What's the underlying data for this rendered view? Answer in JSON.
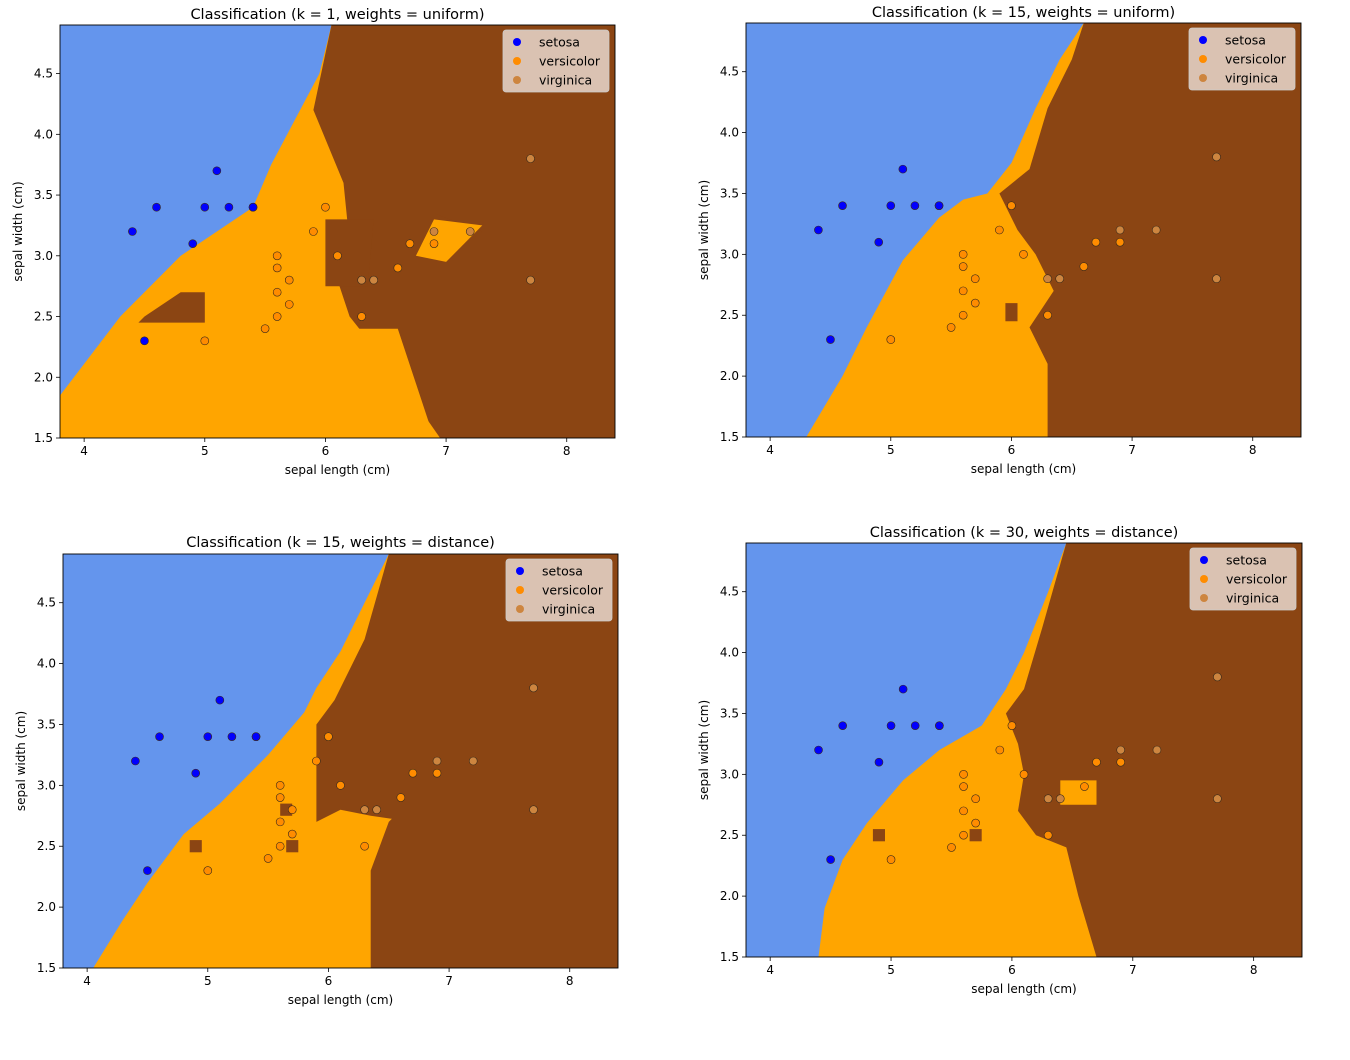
{
  "colors": {
    "setosa_region": "#6495ED",
    "versicolor_region": "#FFA500",
    "virginica_region": "#8B4513",
    "setosa_point": "#0000FF",
    "versicolor_point": "#FF8C00",
    "virginica_point": "#CD853F",
    "legend_bg": "#E8D8CF"
  },
  "chart_data": [
    {
      "type": "scatter",
      "title": "Classification (k = 1, weights = uniform)",
      "xlabel": "sepal length (cm)",
      "ylabel": "sepal width (cm)",
      "xlim": [
        3.8,
        8.4
      ],
      "ylim": [
        1.5,
        4.9
      ],
      "xticks": [
        "4",
        "5",
        "6",
        "7",
        "8"
      ],
      "yticks": [
        "1.5",
        "2.0",
        "2.5",
        "3.0",
        "3.5",
        "4.0",
        "4.5"
      ],
      "legend": [
        "setosa",
        "versicolor",
        "virginica"
      ],
      "legend_position": "upper right",
      "regions": {
        "setosa": [
          [
            3.8,
            4.9
          ],
          [
            6.05,
            4.9
          ],
          [
            5.95,
            4.5
          ],
          [
            5.55,
            3.75
          ],
          [
            5.4,
            3.4
          ],
          [
            4.8,
            3.0
          ],
          [
            4.3,
            2.5
          ],
          [
            3.8,
            1.85
          ]
        ],
        "virginica": [
          [
            6.05,
            4.9
          ],
          [
            8.4,
            4.9
          ],
          [
            8.4,
            1.5
          ],
          [
            6.95,
            1.5
          ],
          [
            6.6,
            2.0
          ],
          [
            6.2,
            2.5
          ],
          [
            6.1,
            2.8
          ],
          [
            6.2,
            3.1
          ],
          [
            6.15,
            3.6
          ],
          [
            5.9,
            4.2
          ]
        ],
        "virginica_islands": [
          [
            [
              4.5,
              2.5
            ],
            [
              4.8,
              2.7
            ],
            [
              5.0,
              2.7
            ],
            [
              5.0,
              2.45
            ],
            [
              4.45,
              2.45
            ]
          ],
          [
            [
              6.0,
              3.3
            ],
            [
              6.4,
              3.3
            ],
            [
              6.35,
              2.75
            ],
            [
              6.0,
              2.75
            ]
          ],
          [
            [
              6.9,
              3.35
            ],
            [
              7.3,
              3.2
            ],
            [
              6.95,
              2.95
            ],
            [
              6.9,
              3.0
            ]
          ]
        ],
        "versicolor_islands": [
          [
            [
              6.1,
              2.4
            ],
            [
              6.6,
              2.4
            ],
            [
              6.9,
              1.5
            ],
            [
              6.1,
              1.5
            ]
          ],
          [
            [
              6.9,
              3.3
            ],
            [
              7.3,
              3.25
            ],
            [
              7.0,
              2.95
            ],
            [
              6.75,
              3.0
            ]
          ]
        ]
      },
      "series": [
        {
          "name": "setosa",
          "x": [
            4.4,
            4.6,
            4.5,
            4.9,
            5.0,
            5.1,
            5.2,
            5.4,
            5.4
          ],
          "y": [
            3.2,
            3.4,
            2.3,
            3.1,
            3.4,
            3.7,
            3.4,
            3.4,
            3.4
          ]
        },
        {
          "name": "versicolor",
          "x": [
            5.0,
            5.5,
            5.6,
            5.6,
            5.6,
            5.6,
            5.7,
            5.7,
            5.9,
            6.0,
            6.1,
            6.3,
            6.6,
            6.7,
            6.9
          ],
          "y": [
            2.3,
            2.4,
            2.5,
            2.7,
            2.9,
            3.0,
            2.6,
            2.8,
            3.2,
            3.4,
            3.0,
            2.5,
            2.9,
            3.1,
            3.1
          ]
        },
        {
          "name": "virginica",
          "x": [
            6.3,
            6.4,
            6.9,
            7.2,
            7.7,
            7.7
          ],
          "y": [
            2.8,
            2.8,
            3.2,
            3.2,
            3.8,
            2.8
          ]
        }
      ]
    },
    {
      "type": "scatter",
      "title": "Classification (k = 15, weights = uniform)",
      "xlabel": "sepal length (cm)",
      "ylabel": "sepal width (cm)",
      "xlim": [
        3.8,
        8.4
      ],
      "ylim": [
        1.5,
        4.9
      ],
      "xticks": [
        "4",
        "5",
        "6",
        "7",
        "8"
      ],
      "yticks": [
        "1.5",
        "2.0",
        "2.5",
        "3.0",
        "3.5",
        "4.0",
        "4.5"
      ],
      "legend": [
        "setosa",
        "versicolor",
        "virginica"
      ],
      "legend_position": "upper right",
      "regions": {
        "setosa": [
          [
            3.8,
            4.9
          ],
          [
            6.6,
            4.9
          ],
          [
            6.4,
            4.6
          ],
          [
            6.2,
            4.2
          ],
          [
            6.0,
            3.75
          ],
          [
            5.8,
            3.5
          ],
          [
            5.6,
            3.45
          ],
          [
            5.4,
            3.3
          ],
          [
            5.1,
            2.95
          ],
          [
            4.8,
            2.4
          ],
          [
            4.6,
            2.0
          ],
          [
            4.3,
            1.5
          ],
          [
            3.8,
            1.5
          ]
        ],
        "virginica": [
          [
            6.6,
            4.9
          ],
          [
            8.4,
            4.9
          ],
          [
            8.4,
            1.5
          ],
          [
            6.3,
            1.5
          ],
          [
            6.3,
            2.1
          ],
          [
            6.15,
            2.4
          ],
          [
            6.35,
            2.7
          ],
          [
            6.2,
            3.0
          ],
          [
            6.05,
            3.2
          ],
          [
            5.9,
            3.5
          ],
          [
            6.15,
            3.7
          ],
          [
            6.3,
            4.2
          ],
          [
            6.5,
            4.6
          ]
        ],
        "virginica_islands": [
          [
            [
              5.95,
              2.6
            ],
            [
              6.05,
              2.6
            ],
            [
              6.05,
              2.45
            ],
            [
              5.95,
              2.45
            ]
          ]
        ],
        "versicolor_islands": []
      },
      "series": [
        {
          "name": "setosa",
          "x": [
            4.4,
            4.6,
            4.5,
            4.9,
            5.0,
            5.1,
            5.2,
            5.4,
            5.4
          ],
          "y": [
            3.2,
            3.4,
            2.3,
            3.1,
            3.4,
            3.7,
            3.4,
            3.4,
            3.4
          ]
        },
        {
          "name": "versicolor",
          "x": [
            5.0,
            5.5,
            5.6,
            5.6,
            5.6,
            5.6,
            5.7,
            5.7,
            5.9,
            6.0,
            6.1,
            6.3,
            6.6,
            6.7,
            6.9
          ],
          "y": [
            2.3,
            2.4,
            2.5,
            2.7,
            2.9,
            3.0,
            2.6,
            2.8,
            3.2,
            3.4,
            3.0,
            2.5,
            2.9,
            3.1,
            3.1
          ]
        },
        {
          "name": "virginica",
          "x": [
            6.3,
            6.4,
            6.9,
            7.2,
            7.7,
            7.7
          ],
          "y": [
            2.8,
            2.8,
            3.2,
            3.2,
            3.8,
            2.8
          ]
        }
      ]
    },
    {
      "type": "scatter",
      "title": "Classification (k = 15, weights = distance)",
      "xlabel": "sepal length (cm)",
      "ylabel": "sepal width (cm)",
      "xlim": [
        3.8,
        8.4
      ],
      "ylim": [
        1.5,
        4.9
      ],
      "xticks": [
        "4",
        "5",
        "6",
        "7",
        "8"
      ],
      "yticks": [
        "1.5",
        "2.0",
        "2.5",
        "3.0",
        "3.5",
        "4.0",
        "4.5"
      ],
      "legend": [
        "setosa",
        "versicolor",
        "virginica"
      ],
      "legend_position": "upper right",
      "regions": {
        "setosa": [
          [
            3.8,
            4.9
          ],
          [
            6.5,
            4.9
          ],
          [
            6.3,
            4.5
          ],
          [
            6.1,
            4.1
          ],
          [
            5.9,
            3.8
          ],
          [
            5.8,
            3.6
          ],
          [
            5.5,
            3.25
          ],
          [
            5.1,
            2.85
          ],
          [
            4.8,
            2.6
          ],
          [
            4.5,
            2.2
          ],
          [
            4.3,
            1.9
          ],
          [
            4.05,
            1.5
          ],
          [
            3.8,
            1.5
          ]
        ],
        "virginica": [
          [
            6.5,
            4.9
          ],
          [
            8.4,
            4.9
          ],
          [
            8.4,
            1.5
          ],
          [
            6.35,
            1.5
          ],
          [
            6.35,
            2.3
          ],
          [
            6.5,
            2.7
          ],
          [
            6.7,
            2.9
          ],
          [
            6.95,
            2.9
          ],
          [
            6.95,
            2.75
          ],
          [
            6.7,
            2.7
          ],
          [
            6.35,
            2.75
          ],
          [
            6.1,
            2.8
          ],
          [
            5.9,
            2.7
          ],
          [
            5.9,
            3.5
          ],
          [
            6.05,
            3.7
          ],
          [
            6.3,
            4.2
          ]
        ],
        "virginica_islands": [
          [
            [
              4.85,
              2.55
            ],
            [
              4.95,
              2.55
            ],
            [
              4.95,
              2.45
            ],
            [
              4.85,
              2.45
            ]
          ],
          [
            [
              5.6,
              2.85
            ],
            [
              5.7,
              2.85
            ],
            [
              5.7,
              2.75
            ],
            [
              5.6,
              2.75
            ]
          ],
          [
            [
              5.75,
              2.55
            ],
            [
              5.75,
              2.45
            ],
            [
              5.65,
              2.45
            ],
            [
              5.65,
              2.55
            ]
          ]
        ],
        "versicolor_islands": []
      },
      "series": [
        {
          "name": "setosa",
          "x": [
            4.4,
            4.6,
            4.5,
            4.9,
            5.0,
            5.1,
            5.2,
            5.4,
            5.4
          ],
          "y": [
            3.2,
            3.4,
            2.3,
            3.1,
            3.4,
            3.7,
            3.4,
            3.4,
            3.4
          ]
        },
        {
          "name": "versicolor",
          "x": [
            5.0,
            5.5,
            5.6,
            5.6,
            5.6,
            5.6,
            5.7,
            5.7,
            5.9,
            6.0,
            6.1,
            6.3,
            6.6,
            6.7,
            6.9
          ],
          "y": [
            2.3,
            2.4,
            2.5,
            2.7,
            2.9,
            3.0,
            2.6,
            2.8,
            3.2,
            3.4,
            3.0,
            2.5,
            2.9,
            3.1,
            3.1
          ]
        },
        {
          "name": "virginica",
          "x": [
            6.3,
            6.4,
            6.9,
            7.2,
            7.7,
            7.7
          ],
          "y": [
            2.8,
            2.8,
            3.2,
            3.2,
            3.8,
            2.8
          ]
        }
      ]
    },
    {
      "type": "scatter",
      "title": "Classification (k = 30, weights = distance)",
      "xlabel": "sepal length (cm)",
      "ylabel": "sepal width (cm)",
      "xlim": [
        3.8,
        8.4
      ],
      "ylim": [
        1.5,
        4.9
      ],
      "xticks": [
        "4",
        "5",
        "6",
        "7",
        "8"
      ],
      "yticks": [
        "1.5",
        "2.0",
        "2.5",
        "3.0",
        "3.5",
        "4.0",
        "4.5"
      ],
      "legend": [
        "setosa",
        "versicolor",
        "virginica"
      ],
      "legend_position": "upper right",
      "regions": {
        "setosa": [
          [
            3.8,
            4.9
          ],
          [
            6.45,
            4.9
          ],
          [
            6.3,
            4.5
          ],
          [
            6.1,
            4.0
          ],
          [
            5.95,
            3.7
          ],
          [
            5.75,
            3.4
          ],
          [
            5.4,
            3.2
          ],
          [
            5.1,
            2.95
          ],
          [
            4.8,
            2.6
          ],
          [
            4.6,
            2.3
          ],
          [
            4.45,
            1.9
          ],
          [
            4.4,
            1.5
          ],
          [
            3.8,
            1.5
          ]
        ],
        "virginica": [
          [
            6.45,
            4.9
          ],
          [
            8.4,
            4.9
          ],
          [
            8.4,
            1.5
          ],
          [
            6.7,
            1.5
          ],
          [
            6.55,
            2.0
          ],
          [
            6.45,
            2.4
          ],
          [
            6.2,
            2.5
          ],
          [
            6.05,
            2.7
          ],
          [
            6.1,
            3.0
          ],
          [
            6.05,
            3.25
          ],
          [
            5.95,
            3.5
          ],
          [
            6.1,
            3.7
          ],
          [
            6.25,
            4.2
          ]
        ],
        "virginica_islands": [
          [
            [
              4.85,
              2.55
            ],
            [
              4.95,
              2.55
            ],
            [
              4.95,
              2.45
            ],
            [
              4.85,
              2.45
            ]
          ],
          [
            [
              5.75,
              2.55
            ],
            [
              5.75,
              2.45
            ],
            [
              5.65,
              2.45
            ],
            [
              5.65,
              2.55
            ]
          ]
        ],
        "versicolor_islands": [
          [
            [
              6.4,
              2.95
            ],
            [
              6.7,
              2.95
            ],
            [
              6.7,
              2.75
            ],
            [
              6.4,
              2.75
            ]
          ]
        ]
      },
      "series": [
        {
          "name": "setosa",
          "x": [
            4.4,
            4.6,
            4.5,
            4.9,
            5.0,
            5.1,
            5.2,
            5.4,
            5.4
          ],
          "y": [
            3.2,
            3.4,
            2.3,
            3.1,
            3.4,
            3.7,
            3.4,
            3.4,
            3.4
          ]
        },
        {
          "name": "versicolor",
          "x": [
            5.0,
            5.5,
            5.6,
            5.6,
            5.6,
            5.6,
            5.7,
            5.7,
            5.9,
            6.0,
            6.1,
            6.3,
            6.6,
            6.7,
            6.9
          ],
          "y": [
            2.3,
            2.4,
            2.5,
            2.7,
            2.9,
            3.0,
            2.6,
            2.8,
            3.2,
            3.4,
            3.0,
            2.5,
            2.9,
            3.1,
            3.1
          ]
        },
        {
          "name": "virginica",
          "x": [
            6.3,
            6.4,
            6.9,
            7.2,
            7.7,
            7.7
          ],
          "y": [
            2.8,
            2.8,
            3.2,
            3.2,
            3.8,
            2.8
          ]
        }
      ]
    }
  ]
}
